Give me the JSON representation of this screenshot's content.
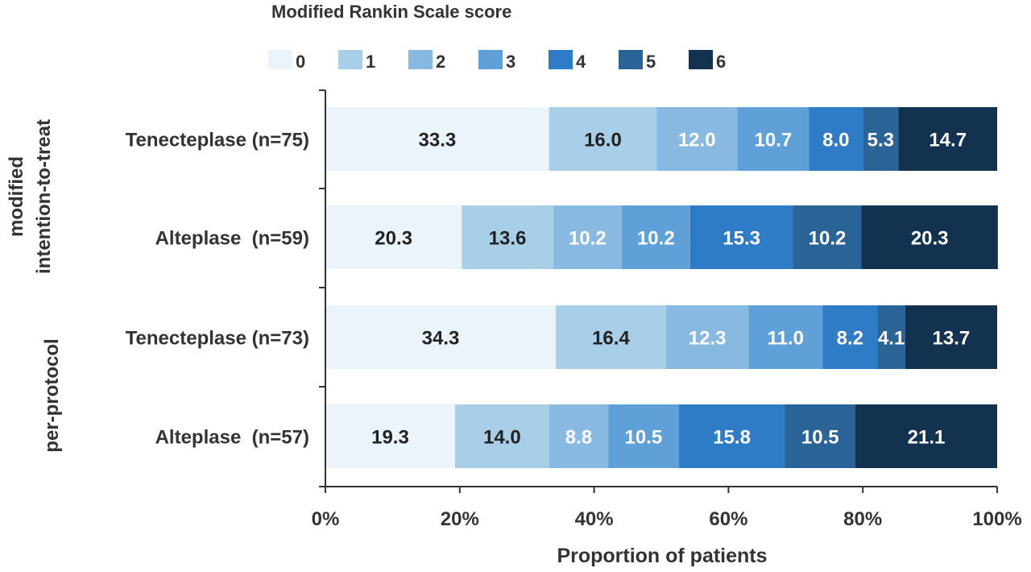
{
  "chart_data": {
    "type": "bar",
    "orientation": "horizontal",
    "stacked": true,
    "legend_title": "Modified Rankin Scale score",
    "legend_position": "top",
    "xlabel": "Proportion of patients",
    "xlim": [
      0,
      100
    ],
    "xticks": [
      "0%",
      "20%",
      "40%",
      "60%",
      "80%",
      "100%"
    ],
    "grid": false,
    "groups": [
      {
        "label": "modified\nintention-to-treat",
        "lines": [
          "modified",
          "intention-to-treat"
        ],
        "categories": [
          0,
          1
        ]
      },
      {
        "label": "per-protocol",
        "lines": [
          "per-protocol"
        ],
        "categories": [
          2,
          3
        ]
      }
    ],
    "categories": [
      "Tenecteplase (n=75)",
      "Alteplase  (n=59)",
      "Tenecteplase (n=73)",
      "Alteplase  (n=57)"
    ],
    "series": [
      {
        "name": "0",
        "color": "#eaf4fa",
        "label_color": "#222222",
        "values": [
          33.3,
          20.3,
          34.3,
          19.3
        ],
        "labels": [
          "33.3",
          "20.3",
          "34.3",
          "19.3"
        ]
      },
      {
        "name": "1",
        "color": "#a9cfe8",
        "label_color": "#222222",
        "values": [
          16.0,
          13.6,
          16.4,
          14.0
        ],
        "labels": [
          "16.0",
          "13.6",
          "16.4",
          "14.0"
        ]
      },
      {
        "name": "2",
        "color": "#88b9e0",
        "label_color": "#ffffff",
        "values": [
          12.0,
          10.2,
          12.3,
          8.8
        ],
        "labels": [
          "12.0",
          "10.2",
          "12.3",
          "8.8"
        ]
      },
      {
        "name": "3",
        "color": "#5fa0d8",
        "label_color": "#ffffff",
        "values": [
          10.7,
          10.2,
          11.0,
          10.5
        ],
        "labels": [
          "10.7",
          "10.2",
          "11.0",
          "10.5"
        ]
      },
      {
        "name": "4",
        "color": "#2f7cc6",
        "label_color": "#ffffff",
        "values": [
          8.0,
          15.3,
          8.2,
          15.8
        ],
        "labels": [
          "8.0",
          "15.3",
          "8.2",
          "15.8"
        ]
      },
      {
        "name": "5",
        "color": "#2a6496",
        "label_color": "#ffffff",
        "values": [
          5.3,
          10.2,
          4.1,
          10.5
        ],
        "labels": [
          "5.3",
          "10.2",
          "4.1",
          "10.5"
        ]
      },
      {
        "name": "6",
        "color": "#13324f",
        "label_color": "#ffffff",
        "values": [
          14.7,
          20.3,
          13.7,
          21.1
        ],
        "labels": [
          "14.7",
          "20.3",
          "13.7",
          "21.1"
        ]
      }
    ]
  }
}
